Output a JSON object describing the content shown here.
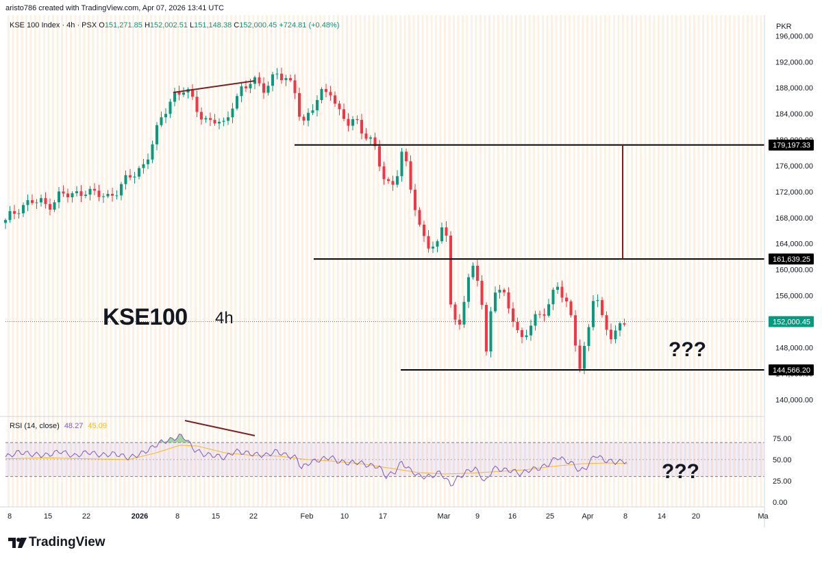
{
  "header": {
    "caption": "aristo786 created with TradingView.com, Apr 07, 2026 13:41 UTC"
  },
  "legend": {
    "symbol": "KSE 100 Index · 4h · PSX",
    "o_label": "O",
    "o": "151,271.85",
    "h_label": "H",
    "h": "152,002.51",
    "l_label": "L",
    "l": "151,148.38",
    "c_label": "C",
    "c": "152,000.45",
    "change": "+724.81 (+0.48%)"
  },
  "currency": "PKR",
  "annotations": {
    "title": "KSE100",
    "timeframe": "4h",
    "question1": "???",
    "question2": "???"
  },
  "brand": {
    "name": "TradingView",
    "logo_icon": "tradingview-logo-icon"
  },
  "colors": {
    "up": "#089981",
    "down": "#f23645",
    "rsi": "#7e57c2",
    "rsi_ma": "#f5b924",
    "divergence": "#7b1e22",
    "grid_stripe": "#fbe6cc"
  },
  "chart_data": [
    {
      "type": "candlestick",
      "ylim": [
        137500,
        199200
      ],
      "y_ticks": [
        "196,000.00",
        "192,000.00",
        "188,000.00",
        "184,000.00",
        "180,000.00",
        "176,000.00",
        "172,000.00",
        "168,000.00",
        "164,000.00",
        "160,000.00",
        "156,000.00",
        "152,000.00",
        "148,000.00",
        "144,000.00",
        "140,000.00"
      ],
      "y_tick_values": [
        196000,
        192000,
        188000,
        184000,
        180000,
        176000,
        172000,
        168000,
        164000,
        160000,
        156000,
        152000,
        148000,
        144000,
        140000
      ],
      "x_ticks": [
        "8",
        "15",
        "22",
        "2026",
        "8",
        "15",
        "22",
        "Feb",
        "10",
        "17",
        "Mar",
        "9",
        "16",
        "25",
        "Apr",
        "8",
        "14",
        "20",
        "Ma"
      ],
      "price_path": [
        [
          0,
          167200
        ],
        [
          20,
          169800
        ],
        [
          40,
          170500
        ],
        [
          60,
          169900
        ],
        [
          80,
          171600
        ],
        [
          100,
          171200
        ],
        [
          115,
          172600
        ],
        [
          130,
          171500
        ],
        [
          150,
          171100
        ],
        [
          165,
          172800
        ],
        [
          185,
          174300
        ],
        [
          200,
          175800
        ],
        [
          215,
          179800
        ],
        [
          230,
          183500
        ],
        [
          245,
          187000
        ],
        [
          262,
          188100
        ],
        [
          275,
          185200
        ],
        [
          290,
          183100
        ],
        [
          305,
          183300
        ],
        [
          320,
          181600
        ],
        [
          332,
          185800
        ],
        [
          345,
          188100
        ],
        [
          360,
          188900
        ],
        [
          375,
          187800
        ],
        [
          395,
          190400
        ],
        [
          410,
          188800
        ],
        [
          425,
          187500
        ],
        [
          432,
          182300
        ],
        [
          445,
          184200
        ],
        [
          460,
          186800
        ],
        [
          475,
          188000
        ],
        [
          485,
          184400
        ],
        [
          500,
          182300
        ],
        [
          515,
          182800
        ],
        [
          530,
          180300
        ],
        [
          540,
          178400
        ],
        [
          555,
          172800
        ],
        [
          568,
          173900
        ],
        [
          580,
          178400
        ],
        [
          592,
          172100
        ],
        [
          605,
          166300
        ],
        [
          618,
          164200
        ],
        [
          630,
          163100
        ],
        [
          642,
          168300
        ],
        [
          650,
          154600
        ],
        [
          660,
          150800
        ],
        [
          672,
          156800
        ],
        [
          685,
          160500
        ],
        [
          695,
          156100
        ],
        [
          700,
          145100
        ],
        [
          712,
          157500
        ],
        [
          725,
          156000
        ],
        [
          740,
          153100
        ],
        [
          752,
          149200
        ],
        [
          765,
          151100
        ],
        [
          780,
          152800
        ],
        [
          790,
          154400
        ],
        [
          805,
          157800
        ],
        [
          818,
          154600
        ],
        [
          828,
          151500
        ],
        [
          838,
          145400
        ],
        [
          850,
          149800
        ],
        [
          860,
          156900
        ],
        [
          872,
          151700
        ],
        [
          885,
          150300
        ],
        [
          900,
          151300
        ],
        [
          908,
          152000
        ]
      ],
      "levels": [
        {
          "value": 179197.33,
          "label": "179,197.33"
        },
        {
          "value": 161639.25,
          "label": "161,639.25"
        },
        {
          "value": 144566.2,
          "label": "144,566.20"
        }
      ],
      "last_price": {
        "value": 152000.45,
        "label": "152,000.45"
      },
      "range_marker": {
        "from": 179197.33,
        "to": 161639.25
      }
    },
    {
      "type": "line",
      "name": "RSI (14, close)",
      "values_shown": [
        "48.27",
        "45.09"
      ],
      "ylim": [
        -5,
        100
      ],
      "y_ticks": [
        "75.00",
        "50.00",
        "25.00",
        "0.00"
      ],
      "y_tick_values": [
        75,
        50,
        25,
        0
      ],
      "band": [
        30,
        70
      ],
      "rsi_path": [
        [
          0,
          53
        ],
        [
          20,
          59
        ],
        [
          40,
          56
        ],
        [
          60,
          55
        ],
        [
          80,
          60
        ],
        [
          100,
          54
        ],
        [
          120,
          59
        ],
        [
          140,
          55
        ],
        [
          160,
          57
        ],
        [
          180,
          52
        ],
        [
          195,
          56
        ],
        [
          210,
          62
        ],
        [
          225,
          70
        ],
        [
          240,
          73
        ],
        [
          255,
          78
        ],
        [
          262,
          76
        ],
        [
          275,
          62
        ],
        [
          290,
          56
        ],
        [
          305,
          55
        ],
        [
          320,
          52
        ],
        [
          335,
          60
        ],
        [
          350,
          58
        ],
        [
          365,
          56
        ],
        [
          380,
          55
        ],
        [
          395,
          60
        ],
        [
          410,
          55
        ],
        [
          425,
          52
        ],
        [
          432,
          40
        ],
        [
          445,
          47
        ],
        [
          460,
          50
        ],
        [
          475,
          53
        ],
        [
          485,
          48
        ],
        [
          500,
          46
        ],
        [
          515,
          47
        ],
        [
          530,
          43
        ],
        [
          545,
          42
        ],
        [
          555,
          30
        ],
        [
          568,
          35
        ],
        [
          578,
          47
        ],
        [
          590,
          38
        ],
        [
          605,
          30
        ],
        [
          620,
          30
        ],
        [
          635,
          35
        ],
        [
          650,
          20
        ],
        [
          660,
          28
        ],
        [
          672,
          35
        ],
        [
          685,
          40
        ],
        [
          695,
          30
        ],
        [
          700,
          22
        ],
        [
          712,
          40
        ],
        [
          725,
          38
        ],
        [
          740,
          37
        ],
        [
          752,
          33
        ],
        [
          765,
          38
        ],
        [
          780,
          40
        ],
        [
          792,
          44
        ],
        [
          805,
          53
        ],
        [
          820,
          48
        ],
        [
          830,
          44
        ],
        [
          838,
          36
        ],
        [
          850,
          42
        ],
        [
          860,
          56
        ],
        [
          875,
          49
        ],
        [
          890,
          47
        ],
        [
          908,
          48.3
        ]
      ],
      "ma_path": [
        [
          0,
          51
        ],
        [
          60,
          52
        ],
        [
          120,
          51
        ],
        [
          180,
          50
        ],
        [
          220,
          58
        ],
        [
          255,
          67
        ],
        [
          280,
          66
        ],
        [
          320,
          58
        ],
        [
          360,
          55
        ],
        [
          400,
          54
        ],
        [
          440,
          50
        ],
        [
          480,
          48
        ],
        [
          520,
          45
        ],
        [
          560,
          40
        ],
        [
          600,
          35
        ],
        [
          640,
          33
        ],
        [
          680,
          34
        ],
        [
          720,
          36
        ],
        [
          760,
          38
        ],
        [
          800,
          42
        ],
        [
          840,
          45
        ],
        [
          880,
          46
        ],
        [
          908,
          45.1
        ]
      ]
    }
  ]
}
